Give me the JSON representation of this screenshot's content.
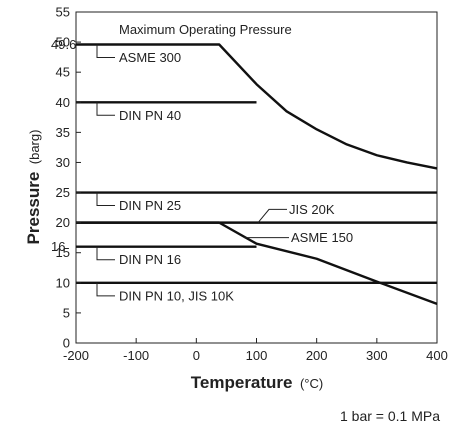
{
  "chart_data": {
    "type": "line",
    "title": "Maximum Operating Pressure",
    "ylabel": "Pressure",
    "ylabel_unit": "(barg)",
    "xlabel": "Temperature",
    "xlabel_unit": "(°C)",
    "note": "1 bar = 0.1 MPa",
    "xlim": [
      -200,
      400
    ],
    "ylim": [
      0,
      55
    ],
    "x_ticks": [
      "-200",
      "-100",
      "0",
      "100",
      "200",
      "300",
      "400"
    ],
    "y_ticks": [
      "0",
      "5",
      "10",
      "15",
      "20",
      "25",
      "30",
      "35",
      "40",
      "45",
      "50",
      "55"
    ],
    "y_extra_ticks": [
      {
        "value": 49.6,
        "label": "49.6"
      },
      {
        "value": 16,
        "label": "16"
      }
    ],
    "grid": false,
    "series": [
      {
        "name": "ASME 300",
        "x": [
          -200,
          38,
          100,
          150,
          200,
          250,
          300,
          350,
          400
        ],
        "y": [
          49.6,
          49.6,
          43.0,
          38.5,
          35.5,
          33.0,
          31.2,
          30.0,
          29.0
        ]
      },
      {
        "name": "DIN PN 40",
        "x": [
          -200,
          100
        ],
        "y": [
          40,
          40
        ]
      },
      {
        "name": "DIN PN 25",
        "x": [
          -200,
          400
        ],
        "y": [
          25,
          25
        ]
      },
      {
        "name": "JIS 20K",
        "x": [
          -200,
          400
        ],
        "y": [
          20,
          20
        ]
      },
      {
        "name": "ASME 150",
        "x": [
          -200,
          38,
          100,
          200,
          300,
          400
        ],
        "y": [
          20,
          20,
          16.5,
          14.0,
          10.2,
          6.5
        ]
      },
      {
        "name": "DIN PN 16",
        "x": [
          -200,
          100
        ],
        "y": [
          16,
          16
        ]
      },
      {
        "name": "DIN PN 10, JIS 10K",
        "x": [
          -200,
          400
        ],
        "y": [
          10,
          10
        ]
      }
    ]
  }
}
